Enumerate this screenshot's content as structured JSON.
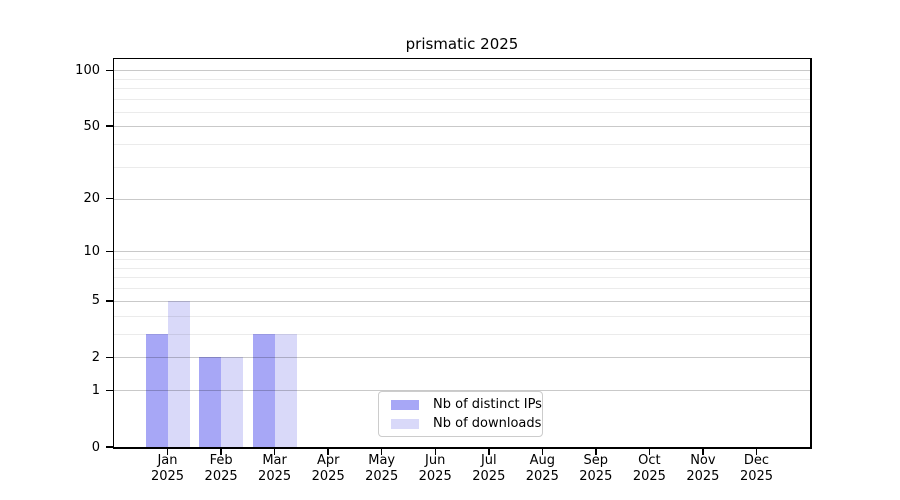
{
  "title": "prismatic 2025",
  "chart_data": {
    "type": "bar",
    "title": "prismatic 2025",
    "categories": [
      "Jan",
      "Feb",
      "Mar",
      "Apr",
      "May",
      "Jun",
      "Jul",
      "Aug",
      "Sep",
      "Oct",
      "Nov",
      "Dec"
    ],
    "x_sublabel": "2025",
    "series": [
      {
        "name": "Nb of distinct IPs",
        "color": "#a7a7f6",
        "values": [
          3,
          2,
          3,
          0,
          0,
          0,
          0,
          0,
          0,
          0,
          0,
          0
        ]
      },
      {
        "name": "Nb of downloads",
        "color": "#d9d9f9",
        "values": [
          5,
          2,
          3,
          0,
          0,
          0,
          0,
          0,
          0,
          0,
          0,
          0
        ]
      }
    ],
    "yscale": "log10(1+y)",
    "ylim": [
      0,
      115
    ],
    "yticks": [
      0,
      1,
      2,
      5,
      10,
      20,
      50,
      100
    ],
    "minor_gridlines": [
      3,
      4,
      6,
      7,
      8,
      9,
      30,
      40,
      60,
      70,
      80,
      90
    ],
    "grid": "on",
    "legend_position": "inside lower center",
    "xlabel": "",
    "ylabel": ""
  },
  "colors": {
    "bar_distinct_ips": "#a7a7f6",
    "bar_downloads": "#d9d9f9",
    "major_grid": "rgba(0,0,0,0.21)",
    "minor_grid": "rgba(0,0,0,0.08)",
    "spine": "#000000",
    "legend_border": "#cccccc",
    "background": "#ffffff"
  }
}
